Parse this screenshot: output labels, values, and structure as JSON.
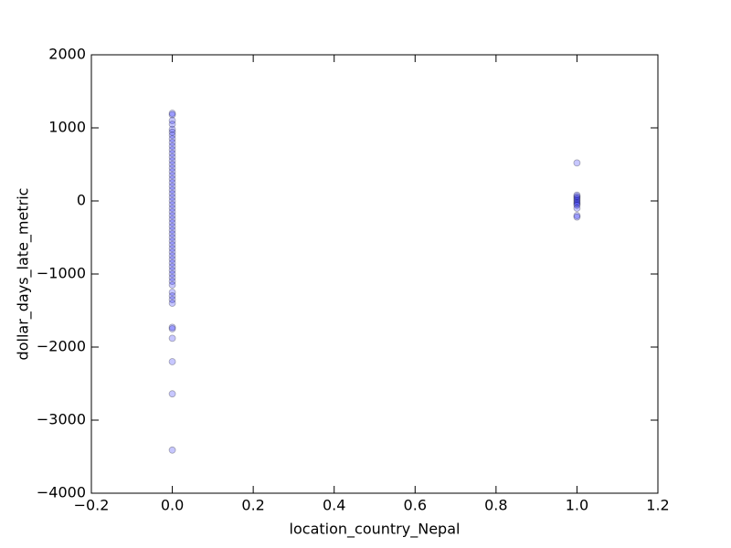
{
  "chart_data": {
    "type": "scatter",
    "x_label": "location_country_Nepal",
    "y_label": "dollar_days_late_metric",
    "xlim": [
      -0.2,
      1.2
    ],
    "ylim": [
      -4000,
      2000
    ],
    "xticks": [
      {
        "value": -0.2,
        "label": "−0.2"
      },
      {
        "value": 0,
        "label": "0.0"
      },
      0.2,
      0.4,
      0.6,
      0.8,
      {
        "value": 1,
        "label": "1.0"
      },
      1.2
    ],
    "yticks": [
      {
        "value": -4000,
        "label": "−4000"
      },
      {
        "value": -3000,
        "label": "−3000"
      },
      {
        "value": -2000,
        "label": "−2000"
      },
      {
        "value": -1000,
        "label": "−1000"
      },
      0,
      1000,
      2000
    ],
    "grid": false,
    "series": [
      {
        "color": "#0000ff",
        "x": [
          0,
          0,
          0,
          0,
          0,
          0,
          0,
          0,
          0,
          0,
          0,
          0,
          0,
          0,
          0,
          0,
          0,
          0,
          0,
          0,
          0,
          0,
          0,
          0,
          0,
          0,
          0,
          0,
          0,
          0,
          0,
          0,
          0,
          0,
          0,
          0,
          0,
          0,
          0,
          0,
          0,
          0,
          0,
          0,
          0,
          0,
          0,
          0,
          0,
          0,
          0,
          0,
          0,
          0,
          0,
          0,
          0,
          0,
          1,
          1,
          1,
          1,
          1,
          1,
          1,
          1,
          1,
          1,
          1,
          1
        ],
        "values": [
          1200,
          1180,
          1100,
          1050,
          980,
          940,
          900,
          850,
          800,
          750,
          700,
          650,
          600,
          550,
          500,
          450,
          400,
          350,
          300,
          250,
          200,
          150,
          100,
          50,
          0,
          -50,
          -100,
          -150,
          -200,
          -250,
          -300,
          -350,
          -400,
          -450,
          -500,
          -550,
          -600,
          -650,
          -700,
          -750,
          -800,
          -850,
          -900,
          -950,
          -1000,
          -1050,
          -1100,
          -1150,
          -1250,
          -1300,
          -1350,
          -1400,
          -1730,
          -1750,
          -1880,
          -2200,
          -2640,
          -3410,
          520,
          80,
          60,
          40,
          20,
          0,
          -20,
          -40,
          -60,
          -100,
          -200,
          -220
        ]
      }
    ]
  }
}
